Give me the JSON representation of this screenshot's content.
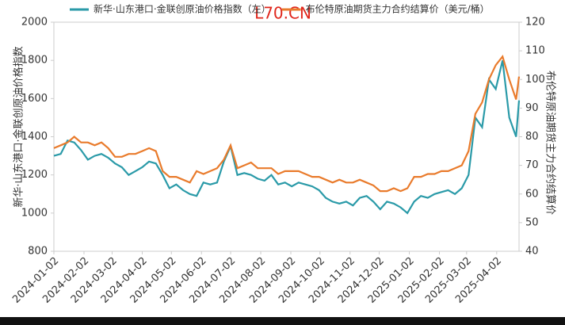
{
  "chart_data": {
    "type": "line",
    "watermark": "L70.CN",
    "ylabel": "新华·山东港口·金联创原油价格指数",
    "y2label": "布伦特原油期货主力合约结算价",
    "x": [
      "2024-01-02",
      "2024-01-09",
      "2024-01-16",
      "2024-01-23",
      "2024-01-30",
      "2024-02-06",
      "2024-02-13",
      "2024-02-20",
      "2024-02-27",
      "2024-03-05",
      "2024-03-12",
      "2024-03-19",
      "2024-03-26",
      "2024-04-02",
      "2024-04-09",
      "2024-04-16",
      "2024-04-23",
      "2024-04-30",
      "2024-05-07",
      "2024-05-14",
      "2024-05-21",
      "2024-05-28",
      "2024-06-04",
      "2024-06-11",
      "2024-06-18",
      "2024-06-25",
      "2024-07-02",
      "2024-07-09",
      "2024-07-16",
      "2024-07-23",
      "2024-07-30",
      "2024-08-06",
      "2024-08-13",
      "2024-08-20",
      "2024-08-27",
      "2024-09-03",
      "2024-09-10",
      "2024-09-17",
      "2024-09-24",
      "2024-10-01",
      "2024-10-08",
      "2024-10-15",
      "2024-10-22",
      "2024-10-29",
      "2024-11-05",
      "2024-11-12",
      "2024-11-19",
      "2024-11-26",
      "2024-12-03",
      "2024-12-10",
      "2024-12-17",
      "2024-12-24",
      "2024-12-31",
      "2025-01-07",
      "2025-01-14",
      "2025-01-21",
      "2025-01-28",
      "2025-02-04",
      "2025-02-11",
      "2025-02-18",
      "2025-02-25",
      "2025-03-04",
      "2025-03-11",
      "2025-03-18",
      "2025-03-25",
      "2025-04-01",
      "2025-04-08",
      "2025-04-15",
      "2025-04-22",
      "2025-04-25"
    ],
    "series": [
      {
        "name": "新华·山东港口·金联创原油价格指数（左）",
        "color": "#2a9aa8",
        "axis": "y",
        "values": [
          1300,
          1310,
          1380,
          1370,
          1330,
          1280,
          1300,
          1310,
          1290,
          1260,
          1240,
          1200,
          1220,
          1240,
          1270,
          1260,
          1200,
          1130,
          1150,
          1120,
          1100,
          1090,
          1160,
          1150,
          1160,
          1270,
          1350,
          1200,
          1210,
          1200,
          1180,
          1170,
          1200,
          1150,
          1160,
          1140,
          1160,
          1150,
          1140,
          1120,
          1080,
          1060,
          1050,
          1060,
          1040,
          1080,
          1090,
          1060,
          1020,
          1060,
          1050,
          1030,
          1000,
          1060,
          1090,
          1080,
          1100,
          1110,
          1120,
          1100,
          1130,
          1200,
          1500,
          1450,
          1700,
          1650,
          1800,
          1500,
          1400,
          1590
        ]
      },
      {
        "name": "布伦特原油期货主力合约结算价（美元/桶）",
        "color": "#e97b2c",
        "axis": "y2",
        "values": [
          76,
          77,
          78,
          80,
          78,
          78,
          77,
          78,
          76,
          73,
          73,
          74,
          74,
          75,
          76,
          75,
          68,
          66,
          66,
          65,
          64,
          68,
          67,
          68,
          69,
          72,
          77,
          69,
          70,
          71,
          69,
          69,
          69,
          67,
          68,
          68,
          68,
          67,
          66,
          66,
          65,
          64,
          65,
          64,
          64,
          65,
          64,
          63,
          61,
          61,
          62,
          61,
          62,
          66,
          66,
          67,
          67,
          68,
          68,
          69,
          70,
          75,
          88,
          92,
          100,
          105,
          108,
          100,
          93,
          101
        ]
      }
    ],
    "xlim": [
      "2024-01-02",
      "2025-04-25"
    ],
    "xticks": [
      "2024-01-02",
      "2024-02-02",
      "2024-03-02",
      "2024-04-02",
      "2024-05-02",
      "2024-06-02",
      "2024-07-02",
      "2024-08-02",
      "2024-09-02",
      "2024-10-02",
      "2024-11-02",
      "2024-12-02",
      "2025-01-02",
      "2025-02-02",
      "2025-03-02",
      "2025-04-02"
    ],
    "ylim": [
      800,
      2000
    ],
    "yticks": [
      800,
      1000,
      1200,
      1400,
      1600,
      1800,
      2000
    ],
    "y2lim": [
      40,
      120
    ],
    "y2ticks": [
      40,
      50,
      60,
      70,
      80,
      90,
      100,
      110,
      120
    ]
  }
}
